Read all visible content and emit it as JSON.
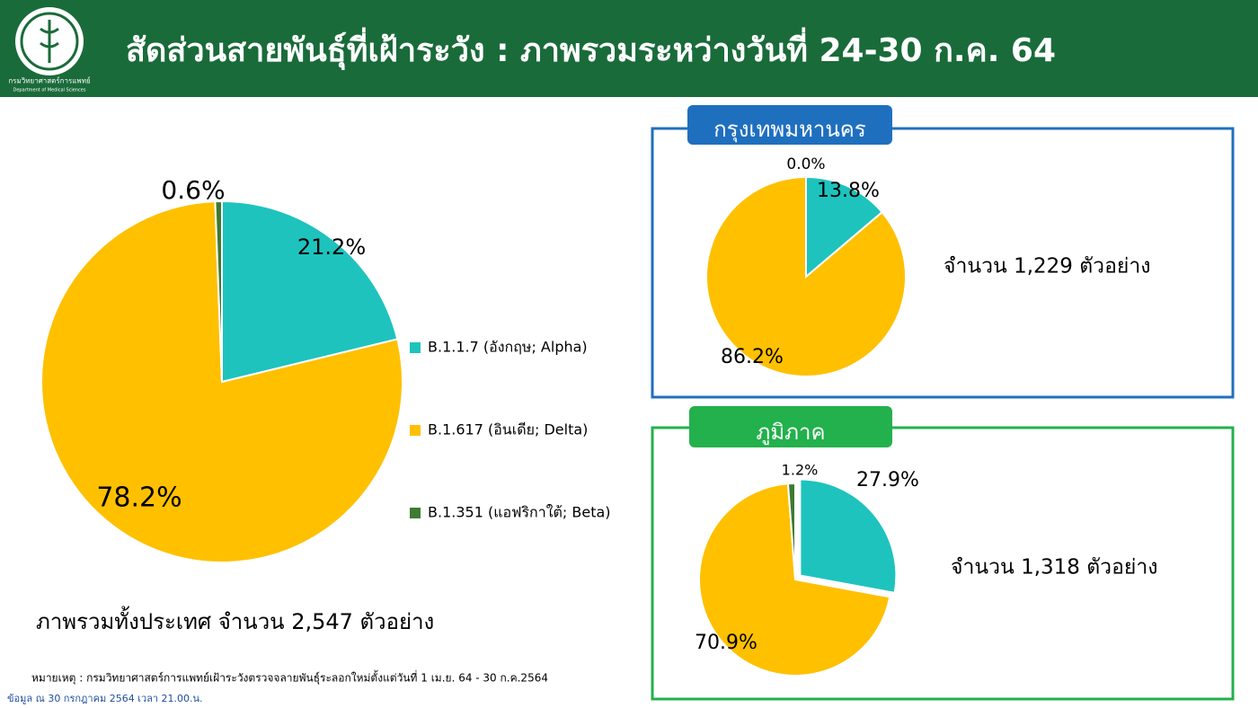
{
  "title": "สัดส่วนสายพันธุ์ที่เฝ้าระวัง : ภาพรวมระหว่างวันที่ 24-30 ก.ค. 64",
  "logo": {
    "name_th": "กรมวิทยาศาสตร์การแพทย์",
    "name_en": "Department of Medical Sciences"
  },
  "chart_data": [
    {
      "type": "pie",
      "caption": "ภาพรวมทั้งประเทศ จำนวน 2,547 ตัวอย่าง",
      "categories": [
        "B.1.1.7 (อังกฤษ; Alpha)",
        "B.1.617 (อินเดีย; Delta)",
        "B.1.351 (แอฟริกาใต้; Beta)"
      ],
      "colors": [
        "#1ec3be",
        "#ffc000",
        "#3e7a30"
      ],
      "values": [
        21.2,
        78.2,
        0.6
      ],
      "value_labels": [
        "21.2%",
        "78.2%",
        "0.6%"
      ],
      "legend": "right"
    },
    {
      "type": "pie",
      "title": "กรุงเทพมหานคร",
      "caption": "จำนวน 1,229 ตัวอย่าง",
      "colors": [
        "#1ec3be",
        "#ffc000",
        "#3e7a30"
      ],
      "values": [
        13.8,
        86.2,
        0.0
      ],
      "value_labels": [
        "13.8%",
        "86.2%",
        "0.0%"
      ]
    },
    {
      "type": "pie",
      "title": "ภูมิภาค",
      "caption": "จำนวน 1,318 ตัวอย่าง",
      "colors": [
        "#1ec3be",
        "#ffc000",
        "#3e7a30"
      ],
      "values": [
        27.9,
        70.9,
        1.2
      ],
      "value_labels": [
        "27.9%",
        "70.9%",
        "1.2%"
      ]
    }
  ],
  "footnote": "หมายเหตุ :  กรมวิทยาศาสตร์การแพทย์เฝ้าระวังตรวจจลายพันธุ์ระลอกใหม่ตั้งแต่วันที่ 1 เม.ย. 64 -  30 ก.ค.2564",
  "source": "ข้อมูล ณ 30 กรกฎาคม 2564 เวลา 21.00.น."
}
